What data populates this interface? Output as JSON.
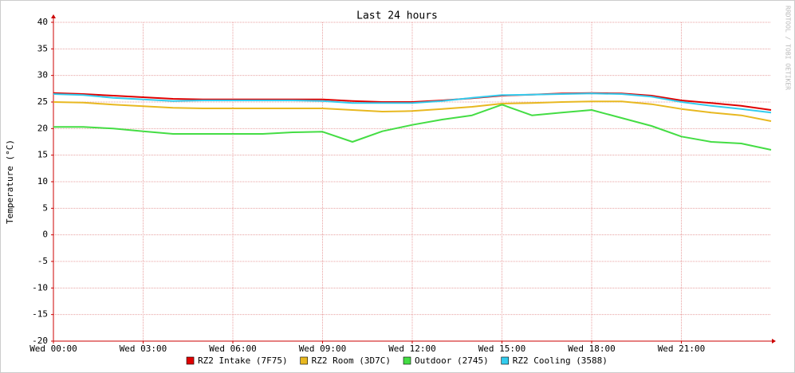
{
  "chart_data": {
    "type": "line",
    "title": "Last 24 hours",
    "y_label": "Temperature (°C)",
    "watermark": "RRDTOOL / TOBI OETIKER",
    "x": [
      0,
      1,
      2,
      3,
      4,
      5,
      6,
      7,
      8,
      9,
      10,
      11,
      12,
      13,
      14,
      15,
      16,
      17,
      18,
      19,
      20,
      21,
      22,
      23,
      24
    ],
    "xlim": [
      0,
      24
    ],
    "xticks": [
      {
        "value": 0,
        "label": "Wed 00:00"
      },
      {
        "value": 3,
        "label": "Wed 03:00"
      },
      {
        "value": 6,
        "label": "Wed 06:00"
      },
      {
        "value": 9,
        "label": "Wed 09:00"
      },
      {
        "value": 12,
        "label": "Wed 12:00"
      },
      {
        "value": 15,
        "label": "Wed 15:00"
      },
      {
        "value": 18,
        "label": "Wed 18:00"
      },
      {
        "value": 21,
        "label": "Wed 21:00"
      }
    ],
    "ylim": [
      -20,
      40
    ],
    "yticks": [
      -20,
      -15,
      -10,
      -5,
      0,
      5,
      10,
      15,
      20,
      25,
      30,
      35,
      40
    ],
    "grid": true,
    "series": [
      {
        "name": "RZ2 Intake (7F75)",
        "color": "#e00000",
        "values": [
          26.7,
          26.5,
          26.2,
          25.9,
          25.6,
          25.5,
          25.5,
          25.5,
          25.5,
          25.5,
          25.2,
          25.0,
          25.0,
          25.3,
          25.7,
          26.2,
          26.4,
          26.6,
          26.7,
          26.6,
          26.2,
          25.3,
          24.8,
          24.3,
          23.5
        ]
      },
      {
        "name": "RZ2 Room (3D7C)",
        "color": "#e8b820",
        "values": [
          25.0,
          24.9,
          24.5,
          24.2,
          23.9,
          23.8,
          23.8,
          23.8,
          23.8,
          23.8,
          23.5,
          23.2,
          23.3,
          23.7,
          24.1,
          24.7,
          24.8,
          25.0,
          25.1,
          25.1,
          24.6,
          23.7,
          23.0,
          22.5,
          21.4
        ]
      },
      {
        "name": "Outdoor (2745)",
        "color": "#44dd44",
        "values": [
          20.3,
          20.3,
          20.0,
          19.5,
          19.0,
          19.0,
          19.0,
          19.0,
          19.3,
          19.4,
          17.5,
          19.5,
          20.7,
          21.7,
          22.5,
          24.5,
          22.5,
          23.0,
          23.5,
          22.0,
          20.5,
          18.5,
          17.5,
          17.2,
          16.0
        ]
      },
      {
        "name": "RZ2 Cooling (3588)",
        "color": "#33ccee",
        "values": [
          26.5,
          26.3,
          25.8,
          25.5,
          25.2,
          25.3,
          25.3,
          25.3,
          25.3,
          25.2,
          24.8,
          24.8,
          24.8,
          25.2,
          25.8,
          26.3,
          26.4,
          26.5,
          26.6,
          26.5,
          26.0,
          25.0,
          24.3,
          23.7,
          23.0
        ]
      }
    ]
  }
}
